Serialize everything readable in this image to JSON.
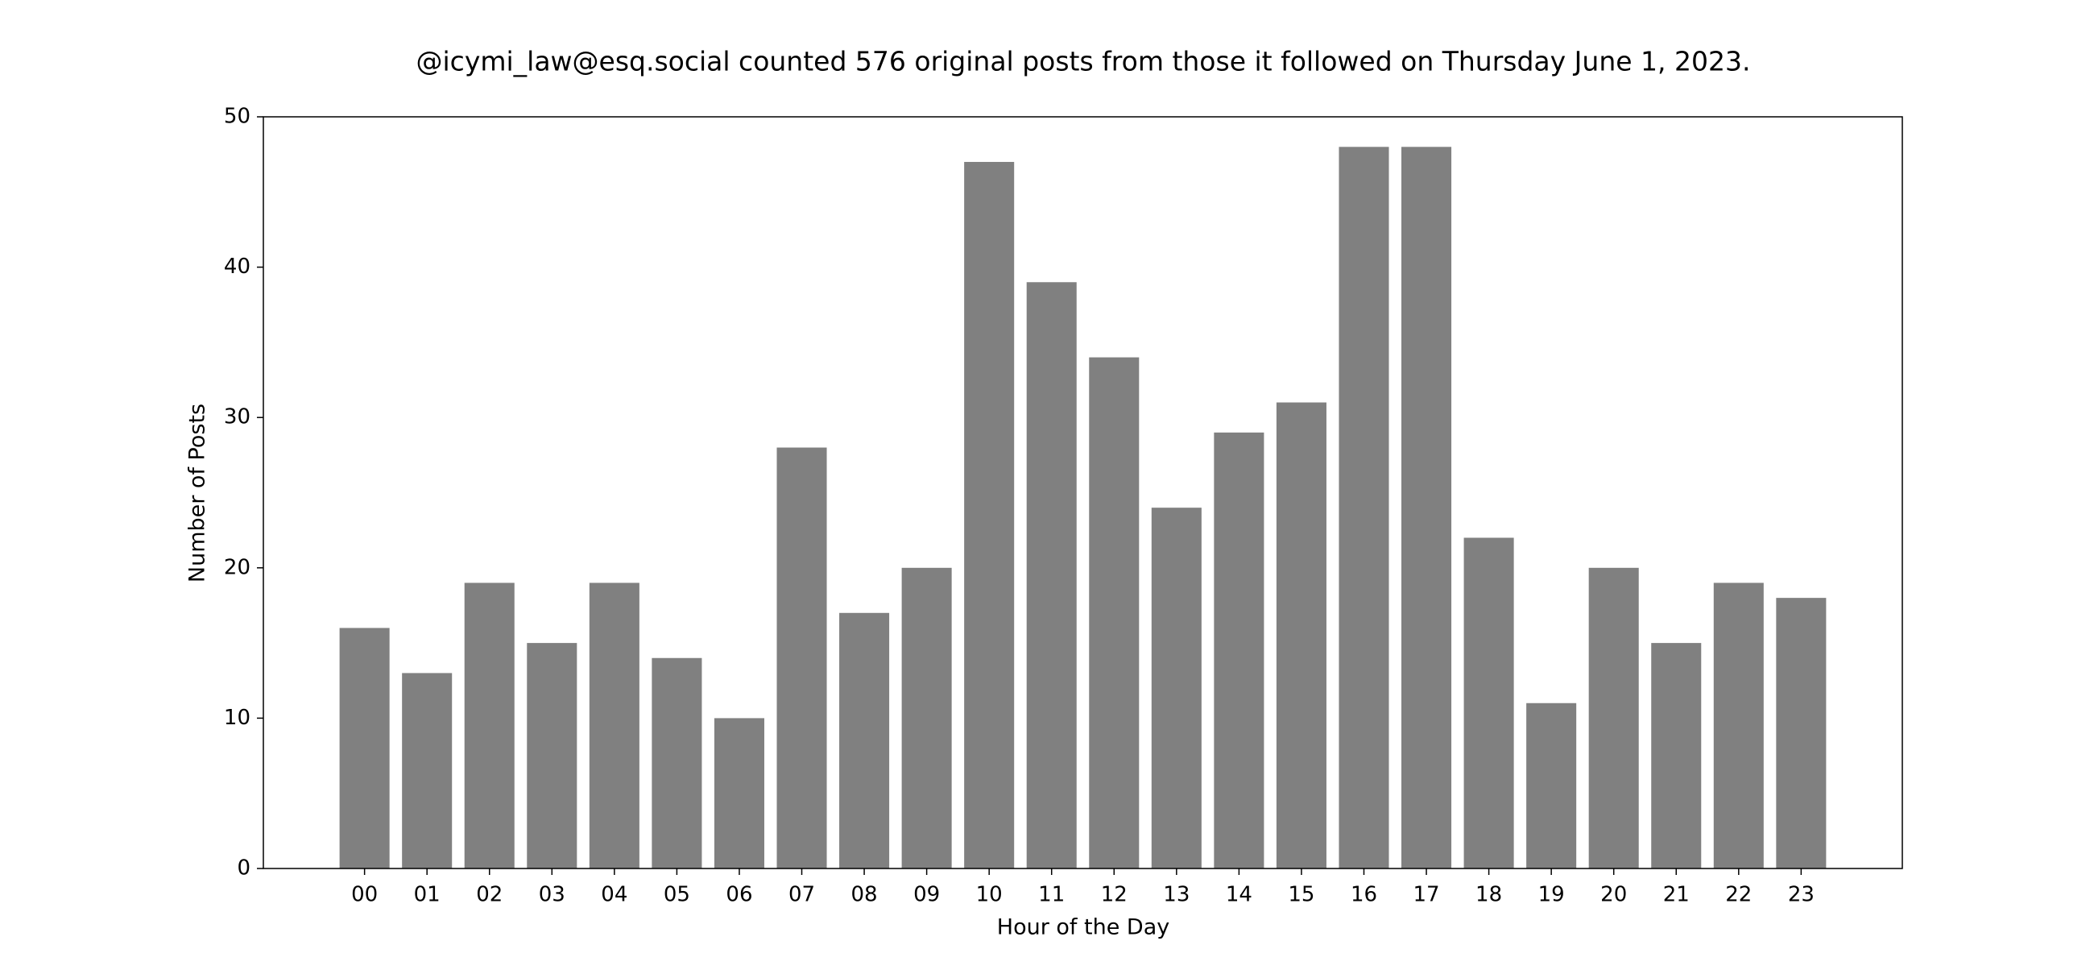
{
  "chart_data": {
    "type": "bar",
    "title": "@icymi_law@esq.social counted 576 original posts from those it followed on Thursday June 1, 2023.",
    "x_label": "Hour of the Day",
    "y_label": "Number of Posts",
    "categories": [
      "00",
      "01",
      "02",
      "03",
      "04",
      "05",
      "06",
      "07",
      "08",
      "09",
      "10",
      "11",
      "12",
      "13",
      "14",
      "15",
      "16",
      "17",
      "18",
      "19",
      "20",
      "21",
      "22",
      "23"
    ],
    "values": [
      16,
      13,
      19,
      15,
      19,
      14,
      10,
      28,
      17,
      20,
      47,
      39,
      34,
      24,
      29,
      31,
      48,
      48,
      22,
      11,
      20,
      15,
      19,
      18
    ],
    "color": "#808080",
    "ylim": [
      0,
      50
    ],
    "yticks": [
      0,
      10,
      20,
      30,
      40,
      50
    ],
    "grid": false
  }
}
